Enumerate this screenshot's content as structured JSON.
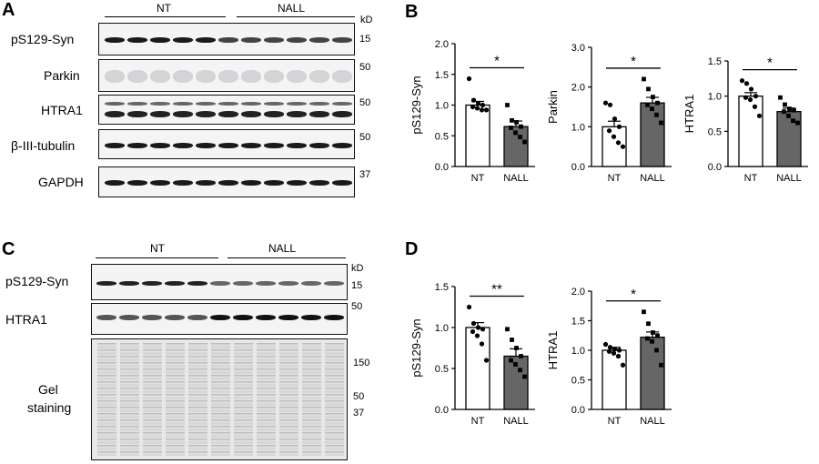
{
  "panels": {
    "A": "A",
    "B": "B",
    "C": "C",
    "D": "D"
  },
  "blot_a": {
    "group1": "NT",
    "group2": "NALL",
    "kd": "kD",
    "rows": [
      {
        "label": "pS129-Syn",
        "mw": "15",
        "kind": "dark"
      },
      {
        "label": "Parkin",
        "mw": "50",
        "kind": "faint"
      },
      {
        "label": "HTRA1",
        "mw": "50",
        "kind": "double"
      },
      {
        "label": "β-III-tubulin",
        "mw": "50",
        "kind": "dark"
      },
      {
        "label": "GAPDH",
        "mw": "37",
        "kind": "dark"
      }
    ]
  },
  "blot_c": {
    "group1": "NT",
    "group2": "NALL",
    "kd": "kD",
    "rows": [
      {
        "label": "pS129-Syn",
        "mw": "15"
      },
      {
        "label": "HTRA1",
        "mw": "50"
      }
    ],
    "gel_label_line1": "Gel",
    "gel_label_line2": "staining",
    "gel_mw": [
      "150",
      "50",
      "37"
    ]
  },
  "chart_data": [
    {
      "type": "bar",
      "panel": "B",
      "ylabel": "pS129-Syn",
      "categories": [
        "NT",
        "NALL"
      ],
      "values": [
        1.0,
        0.65
      ],
      "errors": [
        0.06,
        0.09
      ],
      "ylim": [
        0,
        2.0
      ],
      "yticks": [
        "0.0",
        "0.5",
        "1.0",
        "1.5",
        "2.0"
      ],
      "significance": "*",
      "points": [
        [
          1.43,
          1.08,
          1.03,
          1.0,
          0.97,
          0.95,
          0.92,
          0.92
        ],
        [
          1.0,
          0.75,
          0.72,
          0.65,
          0.63,
          0.55,
          0.48,
          0.4
        ]
      ]
    },
    {
      "type": "bar",
      "panel": "B",
      "ylabel": "Parkin",
      "categories": [
        "NT",
        "NALL"
      ],
      "values": [
        1.0,
        1.6
      ],
      "errors": [
        0.14,
        0.14
      ],
      "ylim": [
        0,
        3.0
      ],
      "yticks": [
        "0.0",
        "1.0",
        "2.0",
        "3.0"
      ],
      "significance": "*",
      "points": [
        [
          1.6,
          1.55,
          1.2,
          1.0,
          0.9,
          0.75,
          0.6,
          0.5
        ],
        [
          2.2,
          1.95,
          1.75,
          1.6,
          1.55,
          1.45,
          1.3,
          1.1
        ]
      ]
    },
    {
      "type": "bar",
      "panel": "B",
      "ylabel": "HTRA1",
      "categories": [
        "NT",
        "NALL"
      ],
      "values": [
        1.0,
        0.78
      ],
      "errors": [
        0.05,
        0.05
      ],
      "ylim": [
        0,
        1.5
      ],
      "yticks": [
        "0.0",
        "0.5",
        "1.0",
        "1.5"
      ],
      "significance": "*",
      "points": [
        [
          1.22,
          1.18,
          1.1,
          1.0,
          0.98,
          0.95,
          0.85,
          0.72
        ],
        [
          0.98,
          0.88,
          0.82,
          0.8,
          0.78,
          0.72,
          0.65,
          0.62
        ]
      ]
    },
    {
      "type": "bar",
      "panel": "D",
      "ylabel": "pS129-Syn",
      "categories": [
        "NT",
        "NALL"
      ],
      "values": [
        1.0,
        0.65
      ],
      "errors": [
        0.06,
        0.09
      ],
      "ylim": [
        0,
        1.5
      ],
      "yticks": [
        "0.0",
        "0.5",
        "1.0",
        "1.5"
      ],
      "significance": "**",
      "points": [
        [
          1.25,
          1.05,
          1.0,
          0.98,
          0.95,
          0.9,
          0.8,
          0.6
        ],
        [
          0.98,
          0.85,
          0.75,
          0.65,
          0.6,
          0.55,
          0.48,
          0.4
        ]
      ]
    },
    {
      "type": "bar",
      "panel": "D",
      "ylabel": "HTRA1",
      "categories": [
        "NT",
        "NALL"
      ],
      "values": [
        1.0,
        1.22
      ],
      "errors": [
        0.05,
        0.09
      ],
      "ylim": [
        0,
        2.0
      ],
      "yticks": [
        "0.0",
        "0.5",
        "1.0",
        "1.5",
        "2.0"
      ],
      "significance": "*",
      "points": [
        [
          1.1,
          1.05,
          1.02,
          1.0,
          0.98,
          0.95,
          0.9,
          0.75
        ],
        [
          1.65,
          1.45,
          1.3,
          1.25,
          1.2,
          1.15,
          1.0,
          0.75
        ]
      ]
    }
  ]
}
